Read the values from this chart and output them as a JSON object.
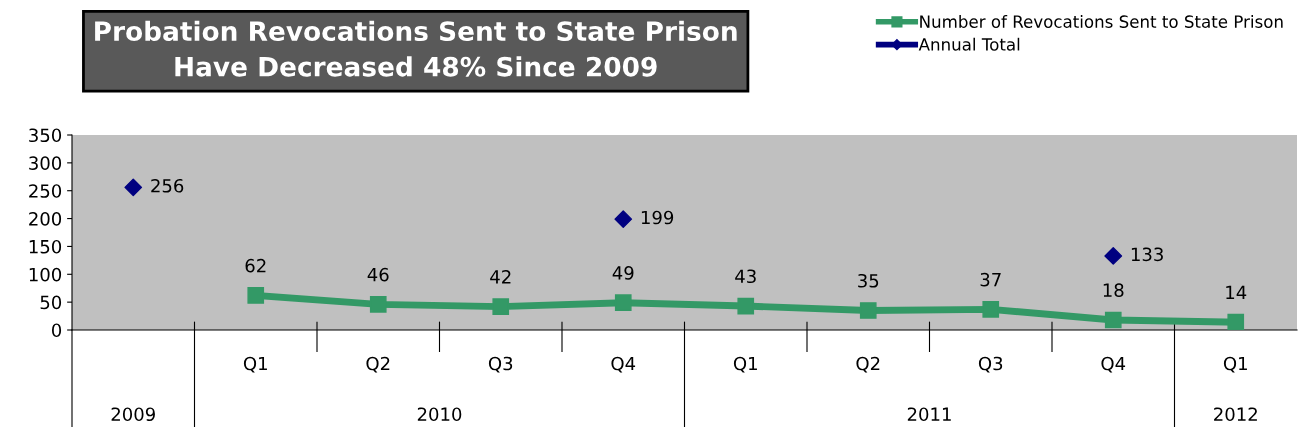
{
  "chart_data": {
    "type": "line",
    "title": "Probation Revocations Sent to State Prison\nHave Decreased 48% Since 2009",
    "categories": [
      null,
      "Q1",
      "Q2",
      "Q3",
      "Q4",
      "Q1",
      "Q2",
      "Q3",
      "Q4",
      "Q1"
    ],
    "annotations": [
      "2009",
      "2010",
      "2011",
      "2012"
    ],
    "series": [
      {
        "name": "Number of Revocations Sent to State Prison",
        "color": "#339966",
        "marker": "square",
        "values": [
          null,
          62,
          46,
          42,
          49,
          43,
          35,
          37,
          18,
          14
        ]
      },
      {
        "name": "Annual Total",
        "type": "scatter",
        "color": "#000080",
        "marker": "diamond",
        "values": [
          256,
          null,
          null,
          null,
          199,
          null,
          null,
          null,
          133,
          null
        ]
      }
    ],
    "ylim": [
      0,
      350
    ],
    "yticks": [
      0,
      50,
      100,
      150,
      200,
      250,
      300,
      350
    ],
    "data_labels": true,
    "grid": false,
    "legend": "top right"
  }
}
